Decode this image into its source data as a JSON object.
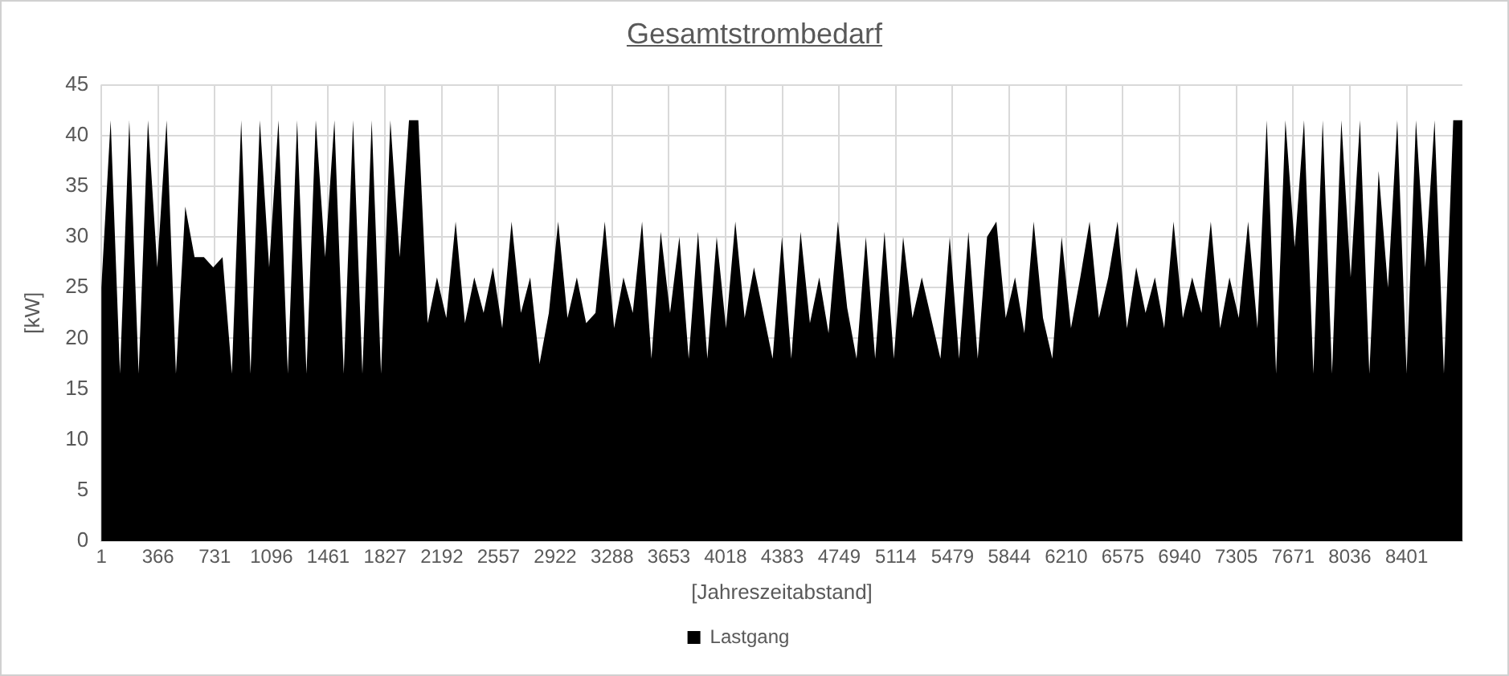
{
  "chart_data": {
    "type": "area",
    "title": "Gesamtstrombedarf",
    "xlabel": "[Jahreszeitabstand]",
    "ylabel": "[kW]",
    "xlim": [
      1,
      8760
    ],
    "xticks": [
      1,
      366,
      731,
      1096,
      1461,
      1827,
      2192,
      2557,
      2922,
      3288,
      3653,
      4018,
      4383,
      4749,
      5114,
      5479,
      5844,
      6210,
      6575,
      6940,
      7305,
      7671,
      8036,
      8401
    ],
    "ylim": [
      0,
      45
    ],
    "yticks": [
      0,
      5,
      10,
      15,
      20,
      25,
      30,
      35,
      40,
      45
    ],
    "grid": true,
    "legend": "bottom",
    "x": [
      1,
      61,
      121,
      181,
      241,
      301,
      361,
      421,
      481,
      541,
      601,
      661,
      721,
      781,
      841,
      901,
      961,
      1021,
      1081,
      1141,
      1201,
      1261,
      1321,
      1381,
      1441,
      1501,
      1561,
      1621,
      1681,
      1741,
      1801,
      1861,
      1921,
      1981,
      2041,
      2101,
      2161,
      2221,
      2281,
      2341,
      2401,
      2461,
      2521,
      2581,
      2641,
      2701,
      2761,
      2821,
      2881,
      2941,
      3001,
      3061,
      3121,
      3181,
      3241,
      3301,
      3361,
      3421,
      3481,
      3541,
      3601,
      3661,
      3721,
      3781,
      3841,
      3901,
      3961,
      4021,
      4081,
      4141,
      4201,
      4261,
      4321,
      4381,
      4441,
      4501,
      4561,
      4621,
      4681,
      4741,
      4801,
      4861,
      4921,
      4981,
      5041,
      5101,
      5161,
      5221,
      5281,
      5341,
      5401,
      5461,
      5521,
      5581,
      5641,
      5701,
      5761,
      5821,
      5881,
      5941,
      6001,
      6061,
      6121,
      6181,
      6241,
      6301,
      6361,
      6421,
      6481,
      6541,
      6601,
      6661,
      6721,
      6781,
      6841,
      6901,
      6961,
      7021,
      7081,
      7141,
      7201,
      7261,
      7321,
      7381,
      7441,
      7501,
      7561,
      7621,
      7681,
      7741,
      7801,
      7861,
      7921,
      7981,
      8041,
      8101,
      8161,
      8221,
      8281,
      8341,
      8401,
      8461,
      8521,
      8581,
      8641,
      8701,
      8760
    ],
    "series": [
      {
        "name": "Lastgang",
        "color": "#000000",
        "values": [
          25,
          41.5,
          16.5,
          41.5,
          16.5,
          41.5,
          27,
          41.5,
          16.5,
          33,
          28,
          28,
          27,
          28,
          16.5,
          41.5,
          16.5,
          41.5,
          27,
          41.5,
          16.5,
          41.5,
          16.5,
          41.5,
          28,
          41.5,
          16.5,
          41.5,
          16.5,
          41.5,
          16.5,
          41.5,
          28,
          41.5,
          41.5,
          21.5,
          26,
          22,
          31.5,
          21.5,
          26,
          22.5,
          27,
          21,
          31.5,
          22.5,
          26,
          17.5,
          22.5,
          31.5,
          22,
          26,
          21.5,
          22.5,
          31.5,
          21,
          26,
          22.5,
          31.5,
          18,
          30.5,
          22.5,
          30,
          18,
          30.5,
          18,
          30,
          21,
          31.5,
          22,
          27,
          22.5,
          18,
          30,
          18,
          30.5,
          21.5,
          26,
          20.5,
          31.5,
          23,
          18,
          30,
          18,
          30.5,
          18,
          30,
          22,
          26,
          22,
          18,
          30,
          18,
          30.5,
          18,
          30,
          31.5,
          22,
          26,
          20.5,
          31.5,
          22,
          18,
          30,
          21,
          26,
          31.5,
          22,
          26,
          31.5,
          21,
          27,
          22.5,
          26,
          21,
          31.5,
          22,
          26,
          22.5,
          31.5,
          21,
          26,
          22,
          31.5,
          21,
          41.5,
          16.5,
          41.5,
          29,
          41.5,
          16.5,
          41.5,
          16.5,
          41.5,
          26,
          41.5,
          16.5,
          36.5,
          25,
          41.5,
          16.5,
          41.5,
          27,
          41.5,
          16.5,
          41.5,
          41.5
        ]
      }
    ]
  }
}
